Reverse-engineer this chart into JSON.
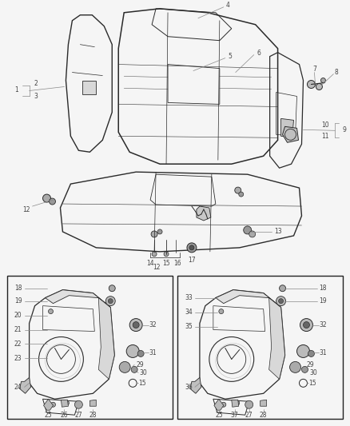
{
  "bg_color": "#f5f5f5",
  "line_color": "#2a2a2a",
  "gray": "#888888",
  "dgray": "#444444",
  "figsize": [
    4.38,
    5.33
  ],
  "dpi": 100,
  "fig_w": 438,
  "fig_h": 533
}
